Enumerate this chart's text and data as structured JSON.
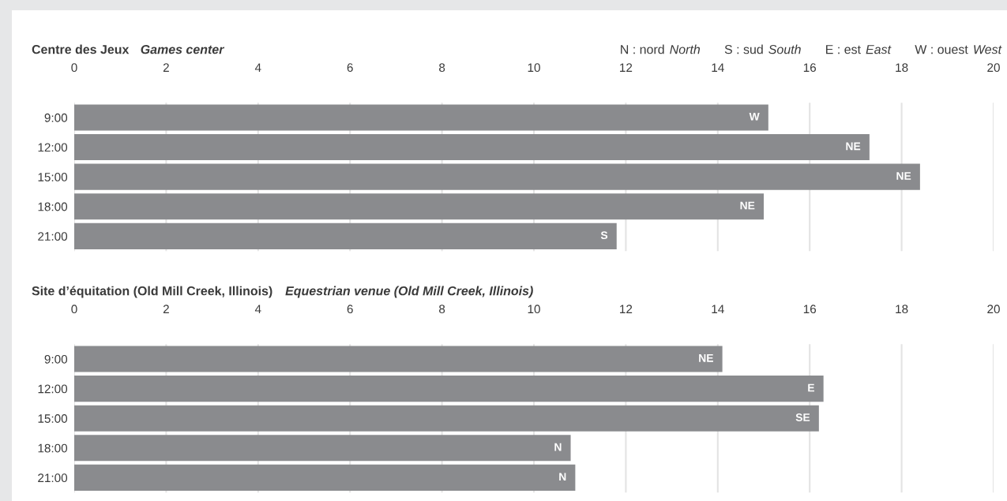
{
  "chart_data": [
    {
      "type": "bar",
      "orientation": "horizontal",
      "title": "Centre des Jeux",
      "subtitle": "Games center",
      "categories": [
        "9:00",
        "12:00",
        "15:00",
        "18:00",
        "21:00"
      ],
      "values": [
        15.1,
        17.3,
        18.4,
        15.0,
        11.8
      ],
      "value_labels": [
        "W",
        "NE",
        "NE",
        "NE",
        "S"
      ],
      "color": "#8a8b8e",
      "xlim": [
        0,
        20
      ],
      "xticks": [
        0,
        2,
        4,
        6,
        8,
        10,
        12,
        14,
        16,
        18,
        20
      ],
      "grid": "x",
      "annotations": [
        "N : nord",
        "North",
        "S : sud",
        "South",
        "E : est",
        "East",
        "W : ouest",
        "West"
      ]
    },
    {
      "type": "bar",
      "orientation": "horizontal",
      "title": "Site d’équitation (Old Mill Creek, Illinois)",
      "subtitle": "Equestrian venue (Old Mill Creek, Illinois)",
      "categories": [
        "9:00",
        "12:00",
        "15:00",
        "18:00",
        "21:00"
      ],
      "values": [
        14.1,
        16.3,
        16.2,
        10.8,
        10.9
      ],
      "value_labels": [
        "NE",
        "E",
        "SE",
        "N",
        "N"
      ],
      "color": "#8a8b8e",
      "xlim": [
        0,
        20
      ],
      "xticks": [
        0,
        2,
        4,
        6,
        8,
        10,
        12,
        14,
        16,
        18,
        20
      ],
      "grid": "x"
    }
  ]
}
